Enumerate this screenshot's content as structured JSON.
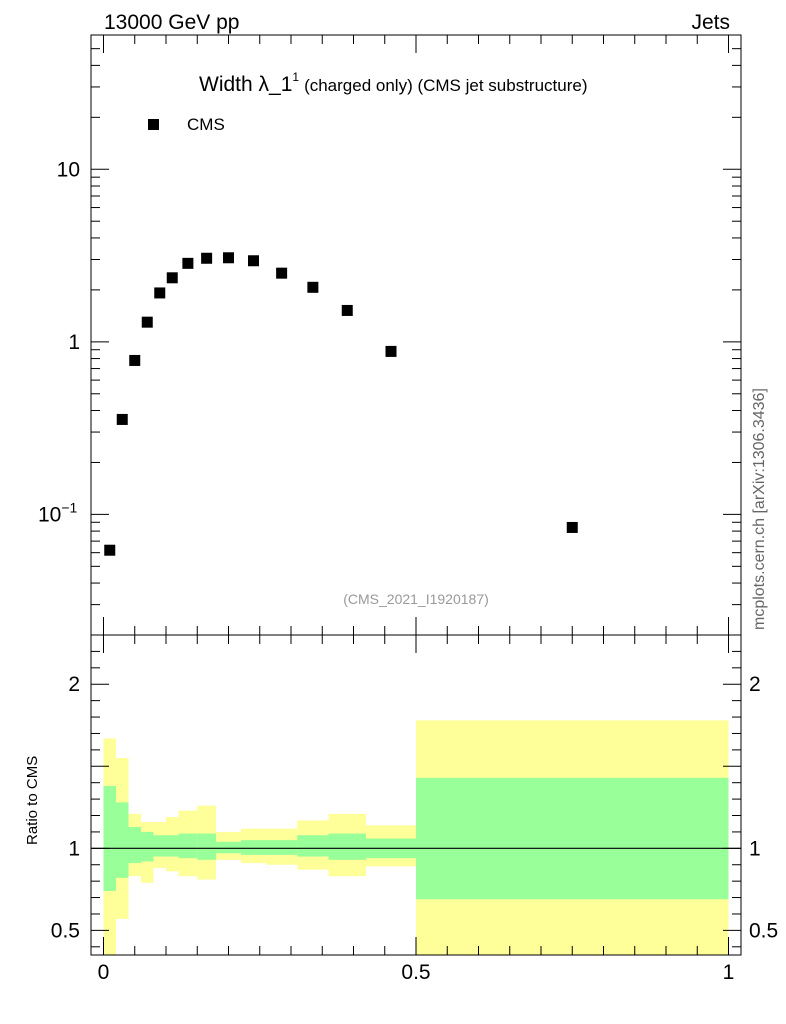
{
  "header": {
    "left_text": "13000 GeV pp",
    "right_text": "Jets"
  },
  "title": {
    "main": "Width λ_1",
    "superscript": "1",
    "sub": "(charged only) (CMS jet substructure)"
  },
  "side_label": "mcplots.cern.ch [arXiv:1306.3436]",
  "analysis_id": "(CMS_2021_I1920187)",
  "legend": {
    "entries": [
      "CMS"
    ],
    "placement": "top-left"
  },
  "colors": {
    "marker": "#000000",
    "band_inner": "#99ff99",
    "band_outer": "#ffff99",
    "analysis_id": "#999999"
  },
  "chart_data": [
    {
      "type": "scatter",
      "y_scale": "log",
      "ylim": [
        0.02,
        60
      ],
      "xlim": [
        -0.02,
        1.02
      ],
      "y_ticks": [
        {
          "value": 0.1,
          "label": "10",
          "exp": "−1"
        },
        {
          "value": 1,
          "label": "1",
          "exp": ""
        },
        {
          "value": 10,
          "label": "10",
          "exp": ""
        }
      ],
      "series": [
        {
          "name": "CMS",
          "x": [
            0.01,
            0.03,
            0.05,
            0.07,
            0.09,
            0.11,
            0.135,
            0.165,
            0.2,
            0.24,
            0.285,
            0.335,
            0.39,
            0.46,
            0.75
          ],
          "y": [
            0.062,
            0.355,
            0.78,
            1.3,
            1.92,
            2.35,
            2.85,
            3.05,
            3.07,
            2.95,
            2.5,
            2.07,
            1.52,
            0.88,
            0.084
          ]
        }
      ]
    },
    {
      "type": "area",
      "ylabel": "Ratio to CMS",
      "ylim": [
        0.35,
        2.3
      ],
      "xlim": [
        -0.02,
        1.02
      ],
      "x_ticks": [
        {
          "value": 0,
          "label": "0"
        },
        {
          "value": 0.5,
          "label": "0.5"
        },
        {
          "value": 1,
          "label": "1"
        }
      ],
      "y_ticks": [
        {
          "value": 0.5,
          "label": "0.5"
        },
        {
          "value": 1,
          "label": "1"
        },
        {
          "value": 2,
          "label": "2"
        }
      ],
      "reference_line": 1,
      "bins": [
        0,
        0.02,
        0.04,
        0.06,
        0.08,
        0.1,
        0.12,
        0.15,
        0.18,
        0.22,
        0.26,
        0.31,
        0.36,
        0.42,
        0.5,
        1.0
      ],
      "inner_band": {
        "low": [
          0.74,
          0.82,
          0.91,
          0.92,
          0.95,
          0.95,
          0.94,
          0.93,
          0.97,
          0.96,
          0.96,
          0.95,
          0.93,
          0.94,
          0.69
        ],
        "high": [
          1.38,
          1.28,
          1.13,
          1.1,
          1.08,
          1.08,
          1.09,
          1.09,
          1.04,
          1.05,
          1.05,
          1.08,
          1.09,
          1.06,
          1.43
        ]
      },
      "outer_band": {
        "low": [
          0.35,
          0.57,
          0.83,
          0.79,
          0.88,
          0.86,
          0.83,
          0.81,
          0.93,
          0.91,
          0.9,
          0.87,
          0.83,
          0.89,
          0.35
        ],
        "high": [
          1.67,
          1.55,
          1.21,
          1.16,
          1.16,
          1.19,
          1.23,
          1.26,
          1.1,
          1.12,
          1.12,
          1.17,
          1.21,
          1.14,
          1.78
        ]
      }
    }
  ]
}
